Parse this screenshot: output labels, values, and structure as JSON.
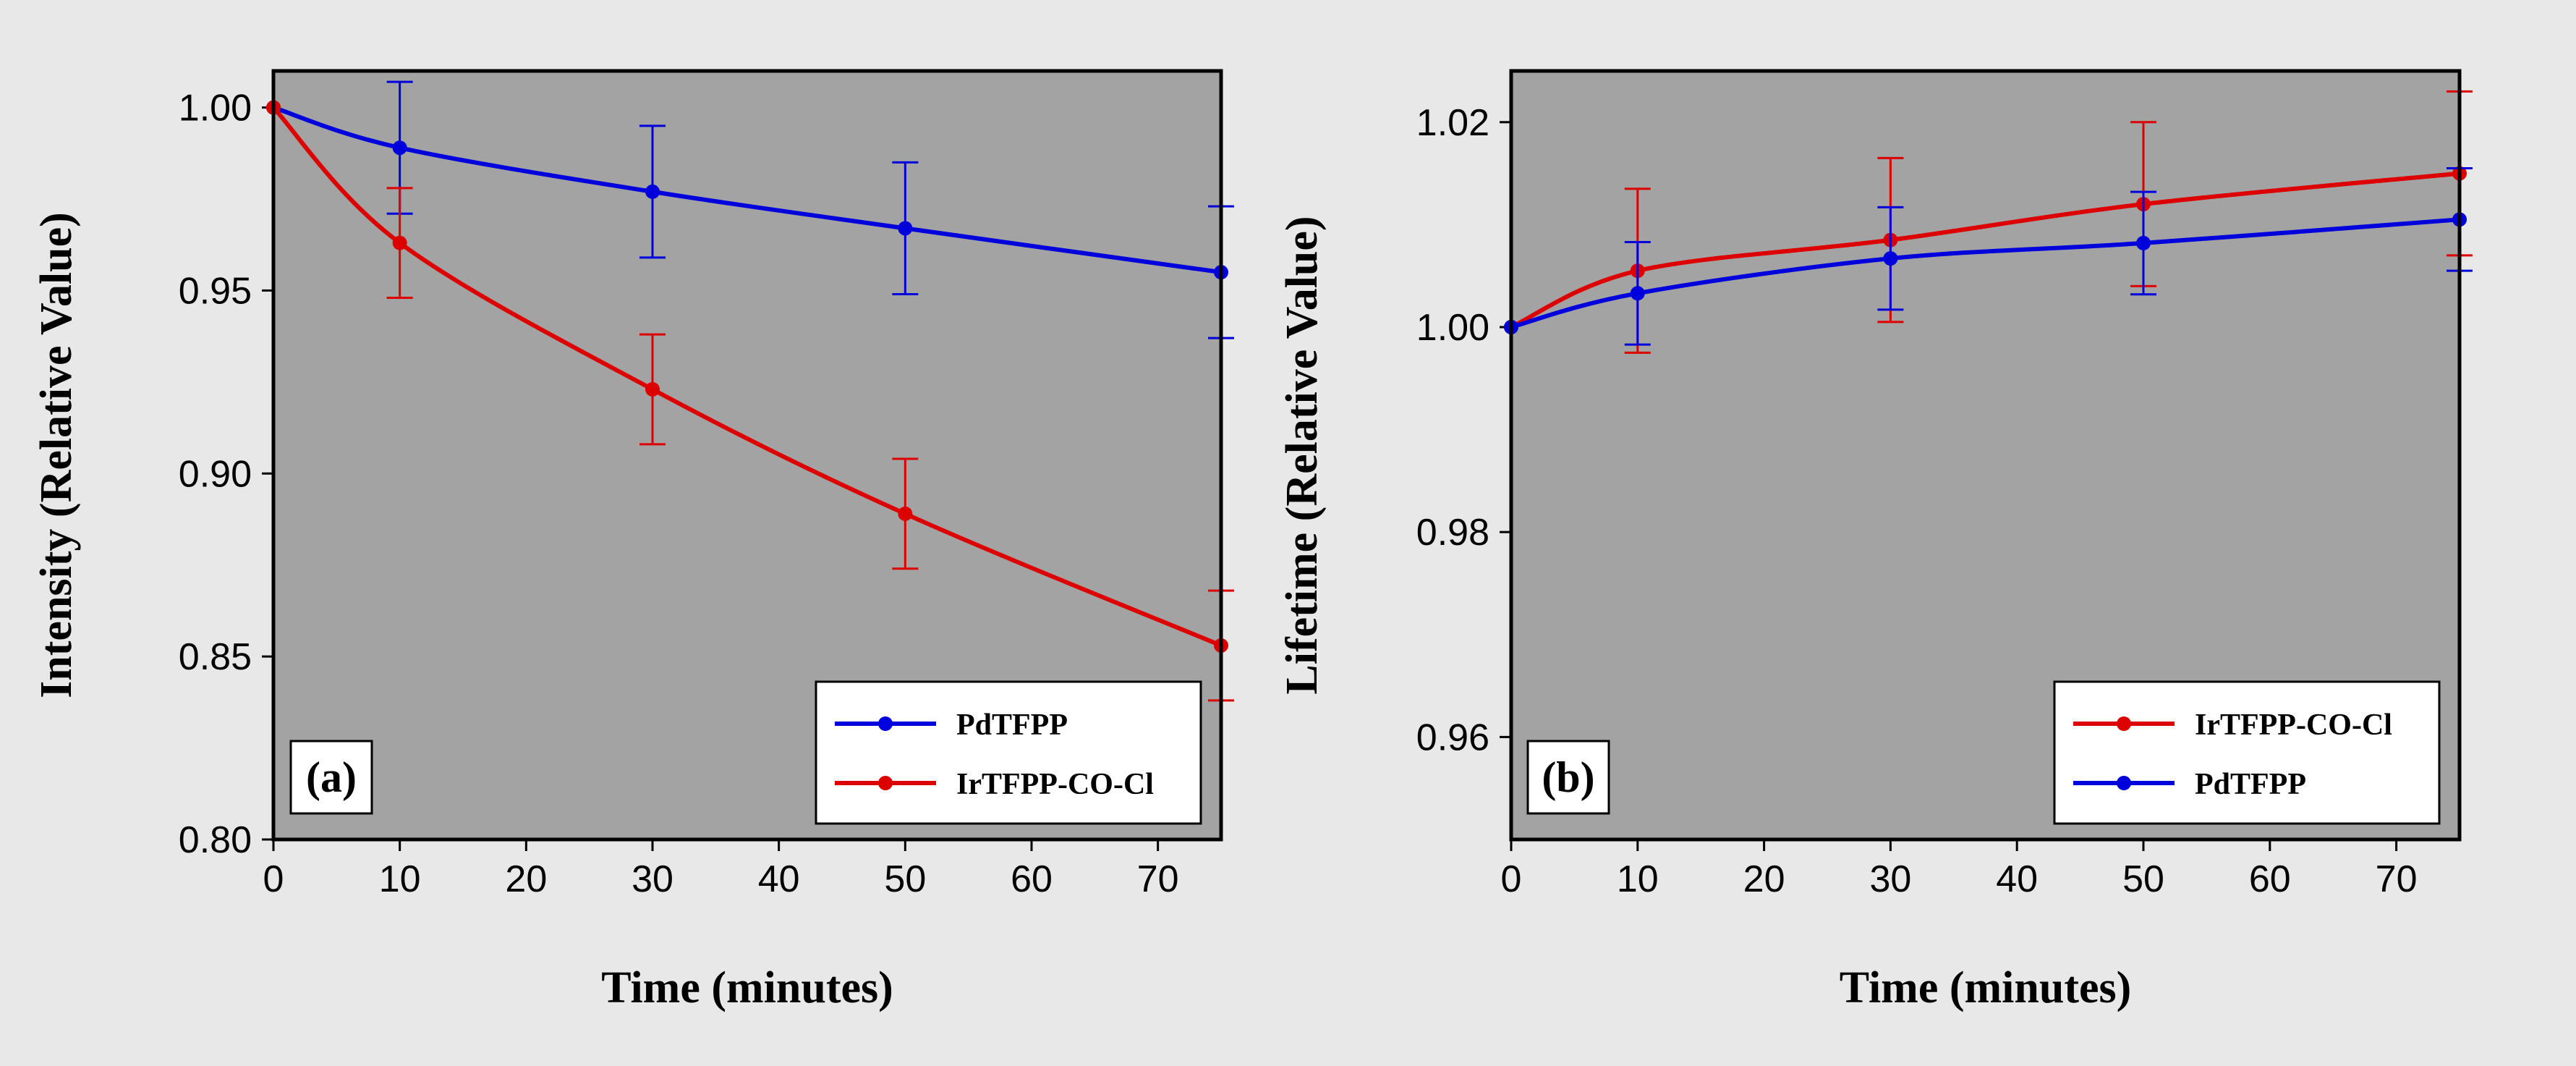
{
  "chart_data": [
    {
      "type": "line",
      "panel_label": "(a)",
      "xlabel": "Time (minutes)",
      "ylabel": "Intensity (Relative Value)",
      "xlim": [
        0,
        75
      ],
      "ylim": [
        0.8,
        1.01
      ],
      "x_ticks": [
        0,
        10,
        20,
        30,
        40,
        50,
        60,
        70
      ],
      "y_ticks": [
        0.8,
        0.85,
        0.9,
        0.95,
        1.0
      ],
      "y_tick_labels": [
        "0.80",
        "0.85",
        "0.90",
        "0.95",
        "1.00"
      ],
      "grid": false,
      "legend_position": "bottom-right",
      "series": [
        {
          "name": "PdTFPP",
          "color": "#0000dd",
          "x": [
            0,
            10,
            30,
            50,
            75
          ],
          "y": [
            1.0,
            0.989,
            0.977,
            0.967,
            0.955
          ],
          "error": [
            0,
            0.018,
            0.018,
            0.018,
            0.018
          ]
        },
        {
          "name": "IrTFPP-CO-Cl",
          "color": "#dd0000",
          "x": [
            0,
            10,
            30,
            50,
            75
          ],
          "y": [
            1.0,
            0.963,
            0.923,
            0.889,
            0.853
          ],
          "error": [
            0,
            0.015,
            0.015,
            0.015,
            0.015
          ]
        }
      ]
    },
    {
      "type": "line",
      "panel_label": "(b)",
      "xlabel": "Time (minutes)",
      "ylabel": "Lifetime (Relative Value)",
      "xlim": [
        0,
        75
      ],
      "ylim": [
        0.95,
        1.025
      ],
      "x_ticks": [
        0,
        10,
        20,
        30,
        40,
        50,
        60,
        70
      ],
      "y_ticks": [
        0.96,
        0.98,
        1.0,
        1.02
      ],
      "y_tick_labels": [
        "0.96",
        "0.98",
        "1.00",
        "1.02"
      ],
      "grid": false,
      "legend_position": "bottom-right",
      "series": [
        {
          "name": "IrTFPP-CO-Cl",
          "color": "#dd0000",
          "x": [
            0,
            10,
            30,
            50,
            75
          ],
          "y": [
            1.0,
            1.0055,
            1.0085,
            1.012,
            1.015
          ],
          "error": [
            0,
            0.008,
            0.008,
            0.008,
            0.008
          ]
        },
        {
          "name": "PdTFPP",
          "color": "#0000dd",
          "x": [
            0,
            10,
            30,
            50,
            75
          ],
          "y": [
            1.0,
            1.0033,
            1.0067,
            1.0082,
            1.0105
          ],
          "error": [
            0,
            0.005,
            0.005,
            0.005,
            0.005
          ]
        }
      ]
    }
  ]
}
